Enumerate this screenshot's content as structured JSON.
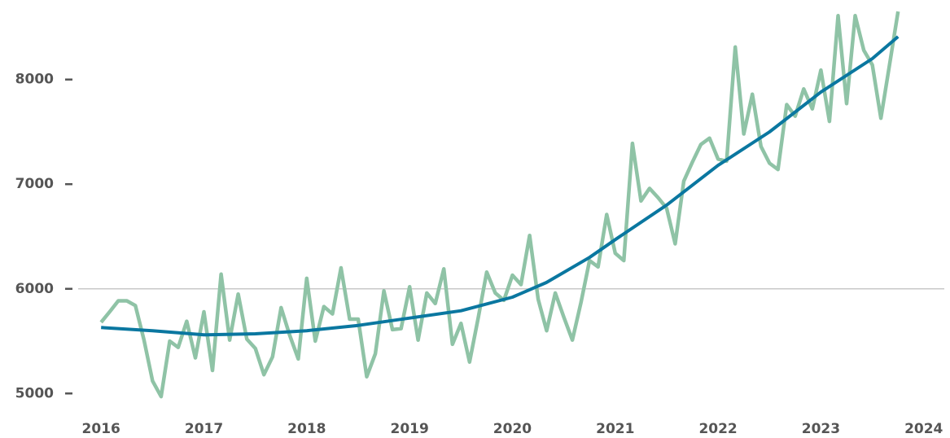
{
  "chart_data": {
    "type": "line",
    "xlim": [
      2015.65,
      2024.2
    ],
    "xticks": [
      2016,
      2017,
      2018,
      2019,
      2020,
      2021,
      2022,
      2023,
      2024
    ],
    "ylim": [
      4870,
      8760
    ],
    "yticks": [
      5000,
      6000,
      7000,
      8000
    ],
    "hline": 6000,
    "grid": false,
    "x": [
      2016,
      2016.083,
      2016.167,
      2016.25,
      2016.333,
      2016.417,
      2016.5,
      2016.583,
      2016.667,
      2016.75,
      2016.833,
      2016.917,
      2017,
      2017.083,
      2017.167,
      2017.25,
      2017.333,
      2017.417,
      2017.5,
      2017.583,
      2017.667,
      2017.75,
      2017.833,
      2017.917,
      2018,
      2018.083,
      2018.167,
      2018.25,
      2018.333,
      2018.417,
      2018.5,
      2018.583,
      2018.667,
      2018.75,
      2018.833,
      2018.917,
      2019,
      2019.083,
      2019.167,
      2019.25,
      2019.333,
      2019.417,
      2019.5,
      2019.583,
      2019.667,
      2019.75,
      2019.833,
      2019.917,
      2020,
      2020.083,
      2020.167,
      2020.25,
      2020.333,
      2020.417,
      2020.5,
      2020.583,
      2020.667,
      2020.75,
      2020.833,
      2020.917,
      2021,
      2021.083,
      2021.167,
      2021.25,
      2021.333,
      2021.417,
      2021.5,
      2021.583,
      2021.667,
      2021.75,
      2021.833,
      2021.917,
      2022,
      2022.083,
      2022.167,
      2022.25,
      2022.333,
      2022.417,
      2022.5,
      2022.583,
      2022.667,
      2022.75,
      2022.833,
      2022.917,
      2023,
      2023.083,
      2023.167,
      2023.25,
      2023.333,
      2023.417,
      2023.5,
      2023.583,
      2023.667,
      2023.75
    ],
    "series": [
      {
        "color": "#8fc3a6",
        "values": [
          5680,
          5780,
          5885,
          5885,
          5840,
          5510,
          5120,
          4970,
          5500,
          5440,
          5690,
          5340,
          5780,
          5220,
          6140,
          5510,
          5950,
          5520,
          5430,
          5180,
          5350,
          5820,
          5560,
          5330,
          6100,
          5500,
          5830,
          5760,
          6200,
          5710,
          5710,
          5160,
          5380,
          5980,
          5610,
          5620,
          6020,
          5510,
          5960,
          5860,
          6190,
          5470,
          5670,
          5300,
          5720,
          6160,
          5960,
          5890,
          6130,
          6040,
          6510,
          5900,
          5600,
          5960,
          5730,
          5510,
          5870,
          6270,
          6210,
          6710,
          6340,
          6270,
          7390,
          6840,
          6960,
          6870,
          6770,
          6430,
          7030,
          7210,
          7380,
          7440,
          7240,
          7220,
          8310,
          7480,
          7860,
          7360,
          7200,
          7140,
          7760,
          7650,
          7910,
          7720,
          8090,
          7600,
          8610,
          7770,
          8610,
          8280,
          8140,
          7630,
          8140,
          8650
        ]
      },
      {
        "color": "#0a77a0",
        "x": [
          2016,
          2016.5,
          2017,
          2017.5,
          2018,
          2018.5,
          2019,
          2019.5,
          2020,
          2020.33,
          2020.75,
          2021,
          2021.5,
          2022,
          2022.5,
          2023,
          2023.5,
          2023.75
        ],
        "values": [
          5630,
          5600,
          5560,
          5570,
          5600,
          5650,
          5720,
          5790,
          5920,
          6060,
          6300,
          6470,
          6800,
          7180,
          7500,
          7880,
          8200,
          8410
        ]
      }
    ]
  }
}
